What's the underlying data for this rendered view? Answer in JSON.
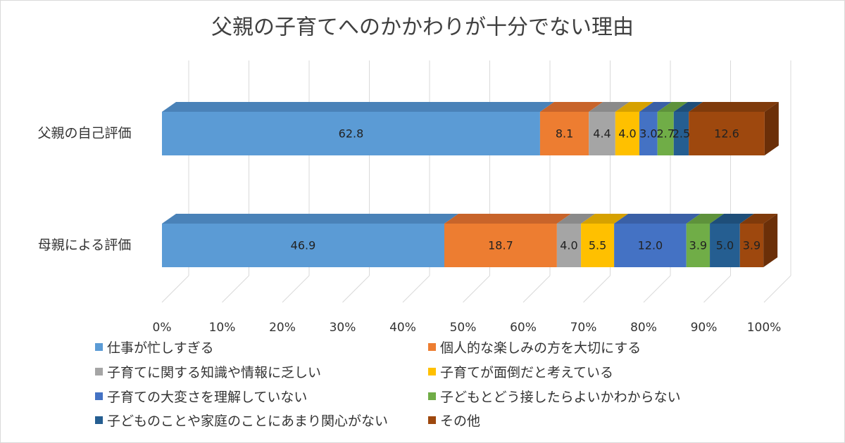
{
  "chart_data": {
    "type": "bar",
    "orientation": "horizontal",
    "stacked": "percent",
    "three_d": true,
    "title": "父親の子育てへのかかわりが十分でない理由",
    "categories": [
      "父親の自己評価",
      "母親による評価"
    ],
    "x_ticks": [
      "0%",
      "10%",
      "20%",
      "30%",
      "40%",
      "50%",
      "60%",
      "70%",
      "80%",
      "90%",
      "100%"
    ],
    "xlim": [
      0,
      100
    ],
    "grid": true,
    "legend_position": "bottom",
    "series": [
      {
        "name": "仕事が忙しすぎる",
        "color": "#5b9bd5",
        "top_color": "#4a82b8",
        "values": [
          62.8,
          46.9
        ],
        "labels": [
          "62.8",
          "46.9"
        ]
      },
      {
        "name": "個人的な楽しみの方を大切にする",
        "color": "#ed7d31",
        "top_color": "#c8642a",
        "values": [
          8.1,
          18.7
        ],
        "labels": [
          "8.1",
          "18.7"
        ]
      },
      {
        "name": "子育てに関する知識や情報に乏しい",
        "color": "#a5a5a5",
        "top_color": "#8a8a8a",
        "values": [
          4.4,
          4.0
        ],
        "labels": [
          "4.4",
          "4.0"
        ]
      },
      {
        "name": "子育てが面倒だと考えている",
        "color": "#ffc000",
        "top_color": "#d6a100",
        "values": [
          4.0,
          5.5
        ],
        "labels": [
          "4.0",
          "5.5"
        ]
      },
      {
        "name": "子育ての大変さを理解していない",
        "color": "#4472c4",
        "top_color": "#3a60a6",
        "values": [
          3.0,
          12.0
        ],
        "labels": [
          "3.0",
          "12.0"
        ]
      },
      {
        "name": "子どもとどう接したらよいかわからない",
        "color": "#70ad47",
        "top_color": "#5e923b",
        "values": [
          2.7,
          3.9
        ],
        "labels": [
          "2.7",
          "3.9"
        ]
      },
      {
        "name": "子どものことや家庭のことにあまり関心がない",
        "color": "#255e91",
        "top_color": "#1e4e79",
        "values": [
          2.5,
          5.0
        ],
        "labels": [
          "2.5",
          "5.0"
        ]
      },
      {
        "name": "その他",
        "color": "#9e480e",
        "top_color": "#7f3a0b",
        "values": [
          12.6,
          3.9
        ],
        "labels": [
          "12.6",
          "3.9"
        ]
      }
    ]
  }
}
